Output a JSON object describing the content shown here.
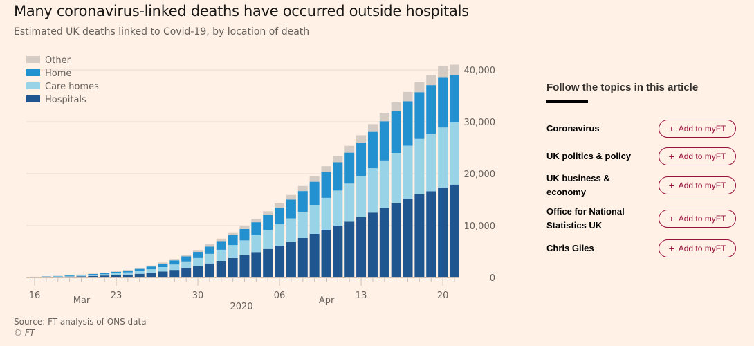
{
  "header": {
    "title": "Many coronavirus-linked deaths have occurred outside hospitals",
    "subtitle": "Estimated UK deaths linked to Covid-19, by location of death"
  },
  "footer": {
    "source": "Source: FT analysis of ONS data",
    "copyright": "© FT"
  },
  "chart_data": {
    "type": "bar",
    "stacked": true,
    "title": "Many coronavirus-linked deaths have occurred outside hospitals",
    "subtitle": "Estimated UK deaths linked to Covid-19, by location of death",
    "xlabel": "2020",
    "ylabel": "",
    "ylim": [
      0,
      42000
    ],
    "yticks": [
      0,
      10000,
      20000,
      30000,
      40000
    ],
    "ytick_labels": [
      "0",
      "10,000",
      "20,000",
      "30,000",
      "40,000"
    ],
    "y_axis_position": "right",
    "grid": true,
    "legend_position": "top-left",
    "x_tick_labels": [
      {
        "day_index": 0,
        "label": "16"
      },
      {
        "day_index": 7,
        "label": "23"
      },
      {
        "day_index": 14,
        "label": "30"
      },
      {
        "day_index": 21,
        "label": "06"
      },
      {
        "day_index": 28,
        "label": "13"
      },
      {
        "day_index": 35,
        "label": "20"
      }
    ],
    "x_month_labels": [
      {
        "day_index": 3.5,
        "label": "Mar"
      },
      {
        "day_index": 24.5,
        "label": "Apr"
      }
    ],
    "x_year_label": {
      "day_index": 17.5,
      "label": "2020"
    },
    "categories": [
      "Mar 16",
      "Mar 17",
      "Mar 18",
      "Mar 19",
      "Mar 20",
      "Mar 21",
      "Mar 22",
      "Mar 23",
      "Mar 24",
      "Mar 25",
      "Mar 26",
      "Mar 27",
      "Mar 28",
      "Mar 29",
      "Mar 30",
      "Mar 31",
      "Apr 01",
      "Apr 02",
      "Apr 03",
      "Apr 04",
      "Apr 05",
      "Apr 06",
      "Apr 07",
      "Apr 08",
      "Apr 09",
      "Apr 10",
      "Apr 11",
      "Apr 12",
      "Apr 13",
      "Apr 14",
      "Apr 15",
      "Apr 16",
      "Apr 17",
      "Apr 18",
      "Apr 19",
      "Apr 20",
      "Apr 21"
    ],
    "series": [
      {
        "name": "Hospitals",
        "color": "#1f5690",
        "values": [
          60,
          90,
          130,
          180,
          230,
          300,
          380,
          470,
          560,
          700,
          900,
          1150,
          1450,
          1800,
          2200,
          2700,
          3200,
          3750,
          4300,
          4900,
          5500,
          6150,
          6850,
          7600,
          8400,
          9200,
          10000,
          10750,
          11600,
          12500,
          13400,
          14300,
          15200,
          16000,
          16600,
          17300,
          17900
        ]
      },
      {
        "name": "Care homes",
        "color": "#98d3e8",
        "values": [
          40,
          60,
          90,
          120,
          150,
          200,
          250,
          330,
          420,
          530,
          680,
          850,
          1050,
          1300,
          1550,
          1850,
          2150,
          2500,
          2850,
          3250,
          3650,
          4100,
          4550,
          5050,
          5600,
          6150,
          6750,
          7350,
          7950,
          8550,
          9150,
          9700,
          10200,
          10700,
          11100,
          11600,
          12000
        ]
      },
      {
        "name": "Home",
        "color": "#2390d0",
        "values": [
          30,
          50,
          70,
          100,
          130,
          170,
          220,
          270,
          340,
          420,
          530,
          660,
          800,
          980,
          1180,
          1400,
          1650,
          1900,
          2200,
          2500,
          2850,
          3200,
          3600,
          4000,
          4450,
          4950,
          5450,
          5950,
          6450,
          7000,
          7550,
          8050,
          8550,
          9000,
          9350,
          9700,
          9100
        ]
      },
      {
        "name": "Other",
        "color": "#d4ccc4",
        "values": [
          20,
          30,
          40,
          50,
          60,
          70,
          90,
          110,
          130,
          160,
          190,
          230,
          270,
          320,
          380,
          440,
          500,
          560,
          620,
          690,
          760,
          830,
          900,
          980,
          1060,
          1140,
          1230,
          1320,
          1410,
          1500,
          1600,
          1700,
          1800,
          1900,
          2000,
          2100,
          2000
        ]
      }
    ]
  },
  "legend": [
    {
      "label": "Other",
      "color": "#d4ccc4"
    },
    {
      "label": "Home",
      "color": "#2390d0"
    },
    {
      "label": "Care homes",
      "color": "#98d3e8"
    },
    {
      "label": "Hospitals",
      "color": "#1f5690"
    }
  ],
  "sidebar": {
    "title": "Follow the topics in this article",
    "button_label": "Add to myFT",
    "button_icon": "plus-icon",
    "accent_color": "#990f3d",
    "topics": [
      {
        "label": "Coronavirus"
      },
      {
        "label": "UK politics & policy"
      },
      {
        "label": "UK business & economy"
      },
      {
        "label": "Office for National Statistics UK"
      },
      {
        "label": "Chris Giles"
      }
    ]
  }
}
